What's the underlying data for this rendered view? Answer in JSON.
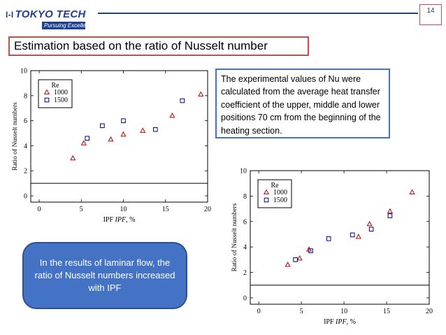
{
  "header": {
    "logo_mark": "I-I",
    "logo_text": "TOKYO TECH",
    "logo_tagline": "Pursuing Excellence",
    "page_number": "14"
  },
  "title": "Estimation based on the ratio of Nusselt number",
  "note": "The experimental values of Nu were calculated from the average heat transfer coefficient of the upper, middle and lower positions 70 cm from the beginning of the heating section.",
  "callout": "In the results of laminar flow, the ratio of Nusselt numbers increased with IPF",
  "colors": {
    "accent_red": "#c0504d",
    "brand_blue": "#1f3f8f",
    "series_1000": "#c00000",
    "series_1500": "#00008b",
    "callout_fill": "#4472c4"
  },
  "chart_data": [
    {
      "type": "scatter",
      "xlabel_prefix": "IPF ",
      "xlabel_var": "IPF",
      "xlabel_unit": ", %",
      "ylabel": "Ratio of Nusselt numbers",
      "xlim": [
        -1,
        20
      ],
      "ylim": [
        -0.5,
        10
      ],
      "xticks": [
        0,
        5,
        10,
        15,
        20
      ],
      "yticks": [
        0,
        2,
        4,
        6,
        8,
        10
      ],
      "reference_line_y": 1,
      "legend": {
        "title": "Re",
        "position": "top-left"
      },
      "series": [
        {
          "name": "1000",
          "marker": "triangle",
          "color": "#c00000",
          "points": [
            [
              4,
              3.0
            ],
            [
              5.3,
              4.2
            ],
            [
              8.5,
              4.5
            ],
            [
              10,
              4.9
            ],
            [
              12.3,
              5.2
            ],
            [
              15.8,
              6.4
            ],
            [
              19.2,
              8.1
            ]
          ]
        },
        {
          "name": "1500",
          "marker": "square",
          "color": "#00008b",
          "points": [
            [
              5.7,
              4.6
            ],
            [
              7.5,
              5.6
            ],
            [
              10,
              6.0
            ],
            [
              13.8,
              5.3
            ],
            [
              17,
              7.6
            ]
          ]
        }
      ]
    },
    {
      "type": "scatter",
      "xlabel_prefix": "IPF ",
      "xlabel_var": "IPF",
      "xlabel_unit": ", %",
      "ylabel": "Ratio of Nusselt numbers",
      "xlim": [
        -1,
        20
      ],
      "ylim": [
        -0.5,
        10
      ],
      "xticks": [
        0,
        5,
        10,
        15,
        20
      ],
      "yticks": [
        0,
        2,
        4,
        6,
        8,
        10
      ],
      "reference_line_y": 1,
      "legend": {
        "title": "Re",
        "position": "top-left"
      },
      "series": [
        {
          "name": "1000",
          "marker": "triangle",
          "color": "#c00000",
          "points": [
            [
              3.4,
              2.6
            ],
            [
              4.8,
              3.1
            ],
            [
              5.9,
              3.8
            ],
            [
              11.7,
              4.8
            ],
            [
              13,
              5.8
            ],
            [
              15.4,
              6.8
            ],
            [
              18,
              8.3
            ]
          ]
        },
        {
          "name": "1500",
          "marker": "square",
          "color": "#00008b",
          "points": [
            [
              4.3,
              3.0
            ],
            [
              6.1,
              3.7
            ],
            [
              8.2,
              4.65
            ],
            [
              11,
              4.95
            ],
            [
              13.2,
              5.4
            ],
            [
              15.4,
              6.45
            ]
          ]
        }
      ]
    }
  ]
}
